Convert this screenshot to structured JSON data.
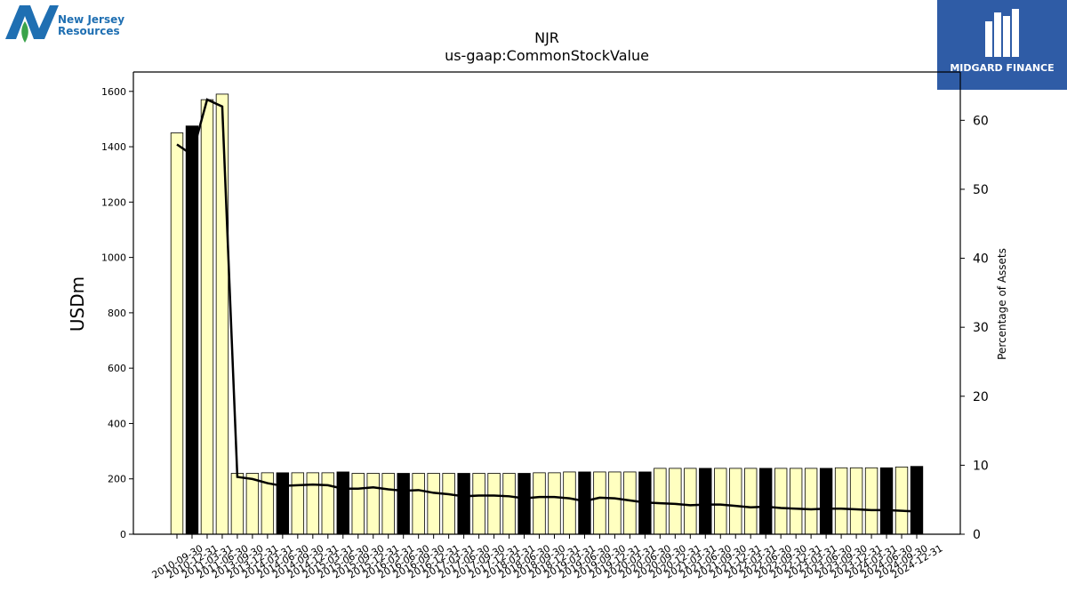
{
  "branding": {
    "company_logo_name": "New Jersey Resources",
    "company_logo_line1": "New Jersey",
    "company_logo_line2": "Resources",
    "company_logo_color": "#1f6fb2",
    "publisher_logo_name": "MIDGARD FINANCE",
    "publisher_logo_bg": "#2f5ca6"
  },
  "chart_data": {
    "type": "bar",
    "title": "NJR",
    "subtitle": "us-gaap:CommonStockValue",
    "ylabel": "USDm",
    "y2label": "Percentage of Assets",
    "ylim": [
      0,
      1670
    ],
    "y2lim": [
      0,
      67
    ],
    "yticks": [
      0,
      200,
      400,
      600,
      800,
      1000,
      1200,
      1400,
      1600
    ],
    "y2ticks": [
      0,
      10,
      20,
      30,
      40,
      50,
      60
    ],
    "bar_color": "#ffffc0",
    "highlight_color": "#000000",
    "line_color": "#000000",
    "categories": [
      "2010-09-30",
      "2010-12-31",
      "2011-03-31",
      "2011-06-30",
      "2013-09-30",
      "2013-12-31",
      "2014-03-31",
      "2014-06-30",
      "2014-09-30",
      "2014-12-31",
      "2015-03-31",
      "2015-06-30",
      "2015-09-30",
      "2015-12-31",
      "2016-03-31",
      "2016-06-30",
      "2016-09-30",
      "2016-12-31",
      "2017-03-31",
      "2017-06-30",
      "2017-09-30",
      "2017-12-31",
      "2018-03-31",
      "2018-06-30",
      "2018-09-30",
      "2018-12-31",
      "2019-03-31",
      "2019-06-30",
      "2019-09-30",
      "2019-12-31",
      "2020-03-31",
      "2020-06-30",
      "2020-09-30",
      "2020-12-31",
      "2021-03-31",
      "2021-06-30",
      "2021-09-30",
      "2021-12-31",
      "2022-03-31",
      "2022-06-30",
      "2022-09-30",
      "2022-12-31",
      "2023-03-31",
      "2023-06-30",
      "2023-09-30",
      "2023-12-31",
      "2024-03-31",
      "2024-06-30",
      "2024-09-30",
      "2024-12-31"
    ],
    "xtick_labels": [
      "2010-09-30",
      "2010-12-31",
      "2011-03-31",
      "2011-06-30",
      "2013-09-30",
      "2013-12-31",
      "2014-03-31",
      "2014-06-30",
      "2014-09-30",
      "2014-12-31",
      "2015-03-31",
      "2015-06-30",
      "2015-09-30",
      "2015-12-31",
      "2016-03-31",
      "2016-06-30",
      "2016-09-30",
      "2016-12-31",
      "2017-03-31",
      "2017-06-30",
      "2017-09-30",
      "2017-12-31",
      "2018-03-31",
      "2018-06-30",
      "2018-09-30",
      "2018-12-31",
      "2019-03-31",
      "2019-06-30",
      "2019-09-30",
      "2019-12-31",
      "2020-03-31",
      "2020-06-30",
      "2020-09-30",
      "2020-12-31",
      "2021-03-31",
      "2021-06-30",
      "2021-09-30",
      "2021-12-31",
      "2022-03-31",
      "2022-06-30",
      "2022-09-30",
      "2022-12-31",
      "2023-03-31",
      "2023-06-30",
      "2023-09-30",
      "2023-12-31",
      "2024-03-31",
      "2024-06-30",
      "2024-09-30",
      "2024-12-31"
    ],
    "values": [
      1450,
      1475,
      1570,
      1590,
      220,
      220,
      222,
      222,
      222,
      222,
      222,
      225,
      220,
      220,
      220,
      220,
      220,
      220,
      220,
      220,
      220,
      220,
      220,
      220,
      222,
      222,
      225,
      225,
      225,
      225,
      225,
      225,
      238,
      238,
      238,
      238,
      238,
      238,
      238,
      238,
      238,
      238,
      238,
      238,
      240,
      240,
      240,
      240,
      243,
      245
    ],
    "highlighted": [
      false,
      true,
      false,
      false,
      false,
      false,
      false,
      true,
      false,
      false,
      false,
      true,
      false,
      false,
      false,
      true,
      false,
      false,
      false,
      true,
      false,
      false,
      false,
      true,
      false,
      false,
      false,
      true,
      false,
      false,
      false,
      true,
      false,
      false,
      false,
      true,
      false,
      false,
      false,
      true,
      false,
      false,
      false,
      true,
      false,
      false,
      false,
      true,
      false,
      true
    ],
    "percentage_of_assets": [
      56.5,
      55,
      63,
      62,
      8.3,
      8.0,
      7.4,
      7.0,
      7.1,
      7.2,
      7.1,
      6.6,
      6.6,
      6.8,
      6.5,
      6.3,
      6.4,
      6.0,
      5.8,
      5.5,
      5.6,
      5.6,
      5.5,
      5.2,
      5.4,
      5.4,
      5.2,
      4.8,
      5.3,
      5.2,
      4.9,
      4.6,
      4.5,
      4.4,
      4.2,
      4.3,
      4.3,
      4.1,
      3.9,
      4.0,
      3.8,
      3.7,
      3.6,
      3.7,
      3.7,
      3.6,
      3.5,
      3.5,
      3.4,
      3.3
    ]
  }
}
